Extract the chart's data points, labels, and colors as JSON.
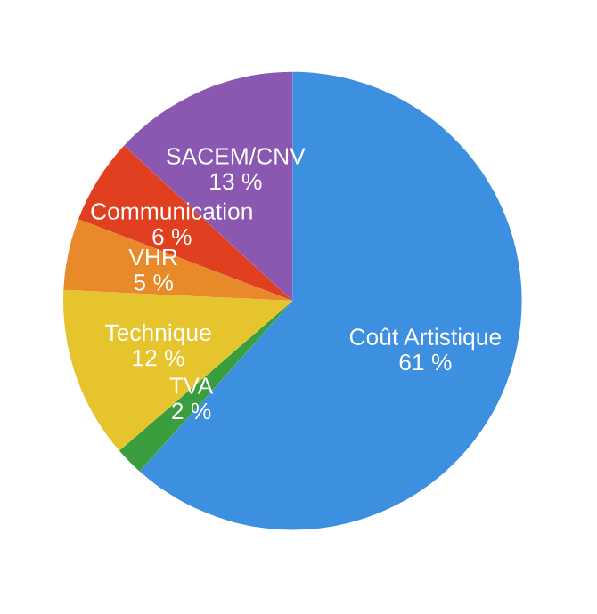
{
  "chart_data": {
    "type": "pie",
    "categories": [
      "Coût Artistique",
      "TVA",
      "Technique",
      "VHR",
      "Communication",
      "SACEM/CNV"
    ],
    "values": [
      61,
      2,
      12,
      5,
      6,
      13
    ],
    "value_labels": [
      "61 %",
      "2 %",
      "12 %",
      "5 %",
      "6 %",
      "13 %"
    ],
    "colors": [
      "#3d8fe0",
      "#3a9e3e",
      "#e6c42e",
      "#e8892a",
      "#e0401f",
      "#8a58b0"
    ],
    "legend": false
  }
}
